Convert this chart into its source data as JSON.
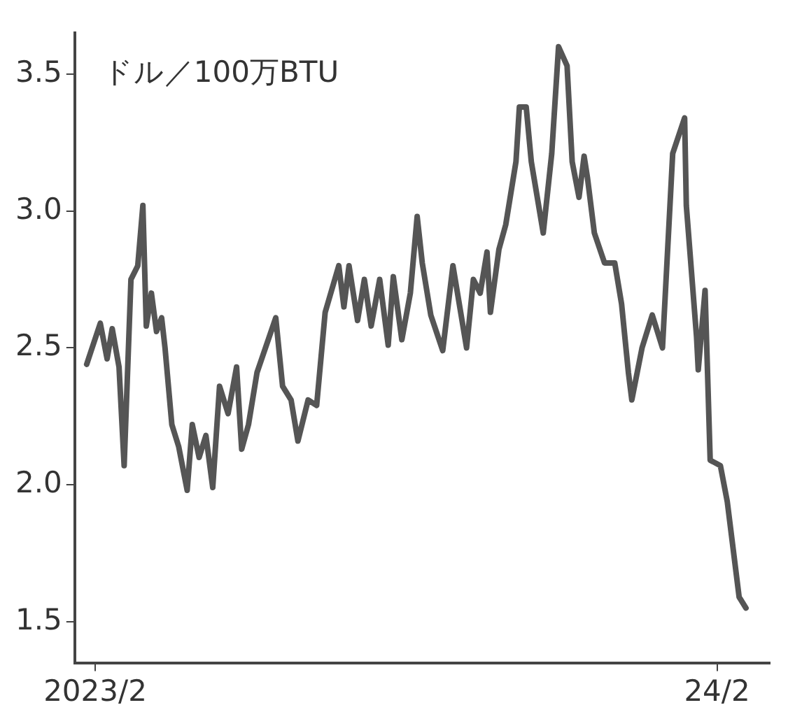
{
  "chart_data": {
    "type": "line",
    "ylabel": "ドル／100万BTU",
    "x": [
      "2023-01-27",
      "2023-02-04",
      "2023-02-08",
      "2023-02-11",
      "2023-02-15",
      "2023-02-18",
      "2023-02-22",
      "2023-02-26",
      "2023-03-01",
      "2023-03-03",
      "2023-03-06",
      "2023-03-09",
      "2023-03-12",
      "2023-03-14",
      "2023-03-18",
      "2023-03-22",
      "2023-03-27",
      "2023-03-30",
      "2023-04-03",
      "2023-04-07",
      "2023-04-11",
      "2023-04-15",
      "2023-04-20",
      "2023-04-25",
      "2023-04-28",
      "2023-05-02",
      "2023-05-07",
      "2023-05-18",
      "2023-05-22",
      "2023-05-27",
      "2023-05-31",
      "2023-06-06",
      "2023-06-11",
      "2023-06-16",
      "2023-06-24",
      "2023-06-27",
      "2023-06-30",
      "2023-07-05",
      "2023-07-09",
      "2023-07-13",
      "2023-07-18",
      "2023-07-23",
      "2023-07-26",
      "2023-07-31",
      "2023-08-05",
      "2023-08-09",
      "2023-08-12",
      "2023-08-17",
      "2023-08-24",
      "2023-08-30",
      "2023-09-07",
      "2023-09-11",
      "2023-09-15",
      "2023-09-19",
      "2023-09-21",
      "2023-09-26",
      "2023-09-30",
      "2023-10-06",
      "2023-10-08",
      "2023-10-12",
      "2023-10-15",
      "2023-10-22",
      "2023-10-27",
      "2023-10-31",
      "2023-11-05",
      "2023-11-08",
      "2023-11-12",
      "2023-11-15",
      "2023-11-17",
      "2023-11-21",
      "2023-11-27",
      "2023-12-03",
      "2023-12-07",
      "2023-12-11",
      "2023-12-13",
      "2023-12-19",
      "2023-12-25",
      "2023-12-31",
      "2024-01-06",
      "2024-01-13",
      "2024-01-14",
      "2024-01-20",
      "2024-01-21",
      "2024-01-25",
      "2024-01-28",
      "2024-02-03",
      "2024-02-07",
      "2024-02-14",
      "2024-02-18"
    ],
    "series": [
      {
        "color": "#555555",
        "values": [
          2.44,
          2.59,
          2.46,
          2.57,
          2.43,
          2.07,
          2.75,
          2.8,
          3.02,
          2.58,
          2.7,
          2.56,
          2.61,
          2.5,
          2.22,
          2.14,
          1.98,
          2.22,
          2.1,
          2.18,
          1.99,
          2.36,
          2.26,
          2.43,
          2.13,
          2.22,
          2.41,
          2.61,
          2.36,
          2.31,
          2.16,
          2.31,
          2.29,
          2.63,
          2.8,
          2.65,
          2.8,
          2.6,
          2.75,
          2.58,
          2.75,
          2.51,
          2.76,
          2.53,
          2.7,
          2.98,
          2.81,
          2.62,
          2.49,
          2.8,
          2.5,
          2.75,
          2.7,
          2.85,
          2.63,
          2.86,
          2.95,
          3.18,
          3.38,
          3.38,
          3.18,
          2.92,
          3.21,
          3.6,
          3.53,
          3.18,
          3.05,
          3.2,
          3.12,
          2.92,
          2.81,
          2.81,
          2.66,
          2.41,
          2.31,
          2.5,
          2.62,
          2.5,
          3.21,
          3.34,
          3.02,
          2.54,
          2.42,
          2.71,
          2.09,
          2.07,
          1.94,
          1.59,
          1.55
        ]
      }
    ],
    "xlim": [
      "2023-01-20",
      "2024-03-03"
    ],
    "xticks": [
      {
        "value": "2023-02",
        "label": "2023/2"
      },
      {
        "value": "2024-02",
        "label": "24/2"
      }
    ],
    "ylim": [
      1.35,
      3.65
    ],
    "yticks": [
      1.5,
      {
        "value": 2,
        "label": "2.0"
      },
      2.5,
      {
        "value": 3,
        "label": "3.0"
      },
      3.5
    ],
    "grid": false,
    "legend": false,
    "marker": "none",
    "line_style": "solid"
  }
}
